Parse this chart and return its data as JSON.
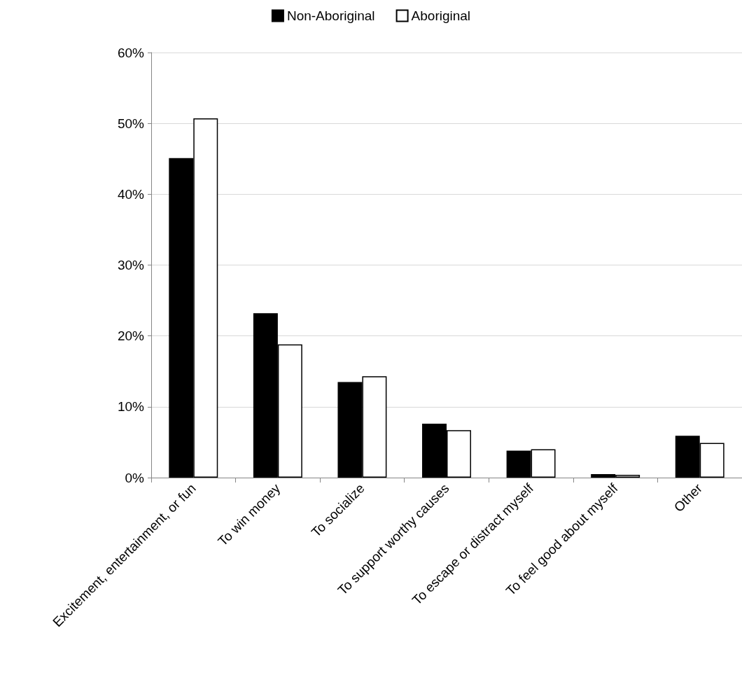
{
  "chart_data": {
    "type": "bar",
    "categories": [
      "Excitement, entertainment, or fun",
      "To win money",
      "To socialize",
      "To support worthy causes",
      "To escape or distract myself",
      "To feel good about myself",
      "Other"
    ],
    "series": [
      {
        "name": "Non-Aboriginal",
        "color": "#000000",
        "values": [
          45.1,
          23.2,
          13.5,
          7.6,
          3.8,
          0.5,
          5.9
        ]
      },
      {
        "name": "Aboriginal",
        "color": "#ffffff",
        "values": [
          50.7,
          18.8,
          14.3,
          6.7,
          4.0,
          0.4,
          4.9
        ]
      }
    ],
    "ylim": [
      0,
      60
    ],
    "yticks": [
      {
        "value": 0,
        "label": "0%"
      },
      {
        "value": 10,
        "label": "10%"
      },
      {
        "value": 20,
        "label": "20%"
      },
      {
        "value": 30,
        "label": "30%"
      },
      {
        "value": 40,
        "label": "40%"
      },
      {
        "value": 50,
        "label": "50%"
      },
      {
        "value": 60,
        "label": "60%"
      }
    ],
    "grid": "y",
    "legend": "top"
  }
}
